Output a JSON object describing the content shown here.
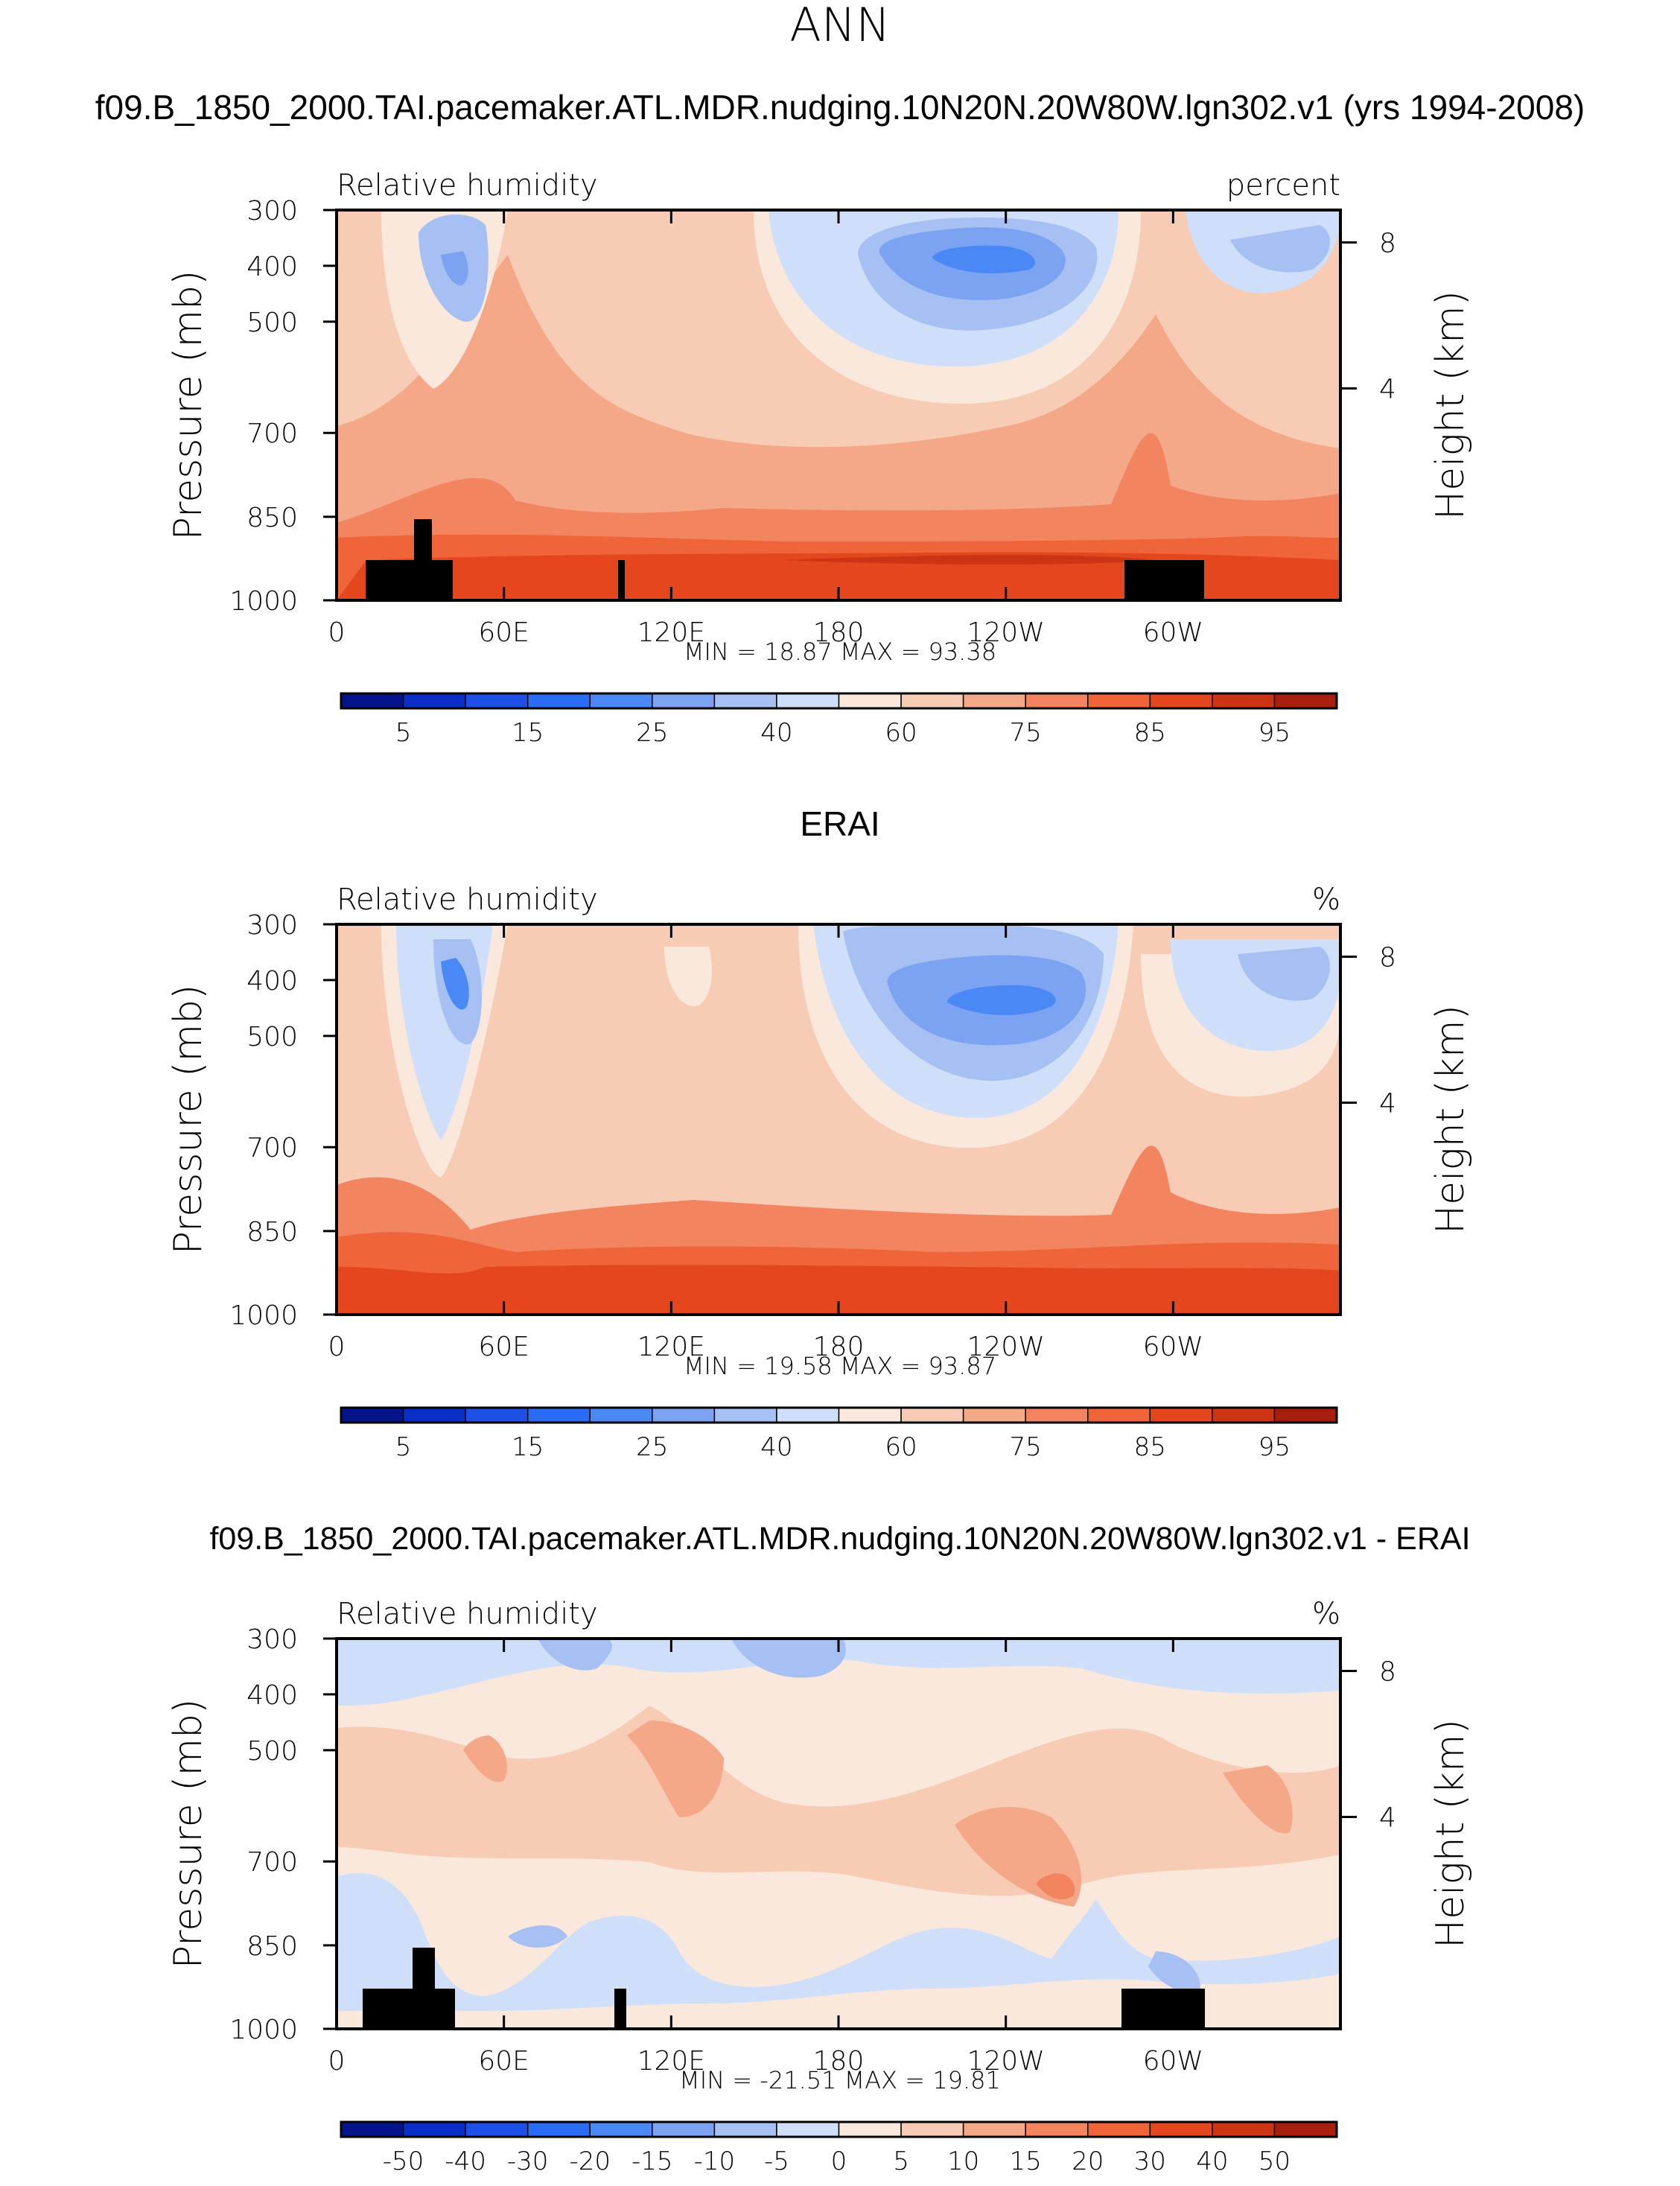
{
  "page_title": "ANN",
  "chart_data": [
    {
      "type": "heatmap",
      "title": "f09.B_1850_2000.TAI.pacemaker.ATL.MDR.nudging.10N20N.20W80W.lgn302.v1 (yrs 1994-2008)",
      "left_label": "Relative humidity",
      "right_label": "percent",
      "ylabel": "Pressure (mb)",
      "y2label": "Height (km)",
      "x_ticks": [
        "0",
        "60E",
        "120E",
        "180",
        "120W",
        "60W"
      ],
      "y_ticks": [
        "300",
        "400",
        "500",
        "700",
        "850",
        "1000"
      ],
      "y2_ticks": [
        "8",
        "4"
      ],
      "xlim": [
        0,
        360
      ],
      "ylim": [
        1000,
        300
      ],
      "stats": "MIN =   18.87   MAX =   93.38",
      "colorbar": {
        "levels": [
          5,
          10,
          15,
          20,
          25,
          30,
          40,
          50,
          60,
          65,
          75,
          80,
          85,
          90,
          95
        ],
        "labels": [
          "5",
          "15",
          "25",
          "40",
          "60",
          "75",
          "85",
          "95"
        ],
        "colors": [
          "#06148c",
          "#0a2ec8",
          "#1e50e6",
          "#2a6cf5",
          "#4a88f5",
          "#7ca2f2",
          "#a7c0f4",
          "#cfdffa",
          "#fbe8dc",
          "#f8ccb4",
          "#f5a888",
          "#f38460",
          "#ef6438",
          "#e4461e",
          "#cc3414",
          "#a81e0c"
        ]
      }
    },
    {
      "type": "heatmap",
      "title": "ERAI",
      "left_label": "Relative humidity",
      "right_label": "%",
      "ylabel": "Pressure (mb)",
      "y2label": "Height (km)",
      "x_ticks": [
        "0",
        "60E",
        "120E",
        "180",
        "120W",
        "60W"
      ],
      "y_ticks": [
        "300",
        "400",
        "500",
        "700",
        "850",
        "1000"
      ],
      "y2_ticks": [
        "8",
        "4"
      ],
      "xlim": [
        0,
        360
      ],
      "ylim": [
        1000,
        300
      ],
      "stats": "MIN =   19.58   MAX =   93.87",
      "colorbar": {
        "levels": [
          5,
          10,
          15,
          20,
          25,
          30,
          40,
          50,
          60,
          65,
          75,
          80,
          85,
          90,
          95
        ],
        "labels": [
          "5",
          "15",
          "25",
          "40",
          "60",
          "75",
          "85",
          "95"
        ],
        "colors": [
          "#06148c",
          "#0a2ec8",
          "#1e50e6",
          "#2a6cf5",
          "#4a88f5",
          "#7ca2f2",
          "#a7c0f4",
          "#cfdffa",
          "#fbe8dc",
          "#f8ccb4",
          "#f5a888",
          "#f38460",
          "#ef6438",
          "#e4461e",
          "#cc3414",
          "#a81e0c"
        ]
      }
    },
    {
      "type": "heatmap",
      "title": "f09.B_1850_2000.TAI.pacemaker.ATL.MDR.nudging.10N20N.20W80W.lgn302.v1 - ERAI",
      "left_label": "Relative humidity",
      "right_label": "%",
      "ylabel": "Pressure (mb)",
      "y2label": "Height (km)",
      "x_ticks": [
        "0",
        "60E",
        "120E",
        "180",
        "120W",
        "60W"
      ],
      "y_ticks": [
        "300",
        "400",
        "500",
        "700",
        "850",
        "1000"
      ],
      "y2_ticks": [
        "8",
        "4"
      ],
      "xlim": [
        0,
        360
      ],
      "ylim": [
        1000,
        300
      ],
      "stats": "MIN =  -21.51   MAX =   19.81",
      "colorbar": {
        "levels": [
          -50,
          -40,
          -30,
          -20,
          -15,
          -10,
          -5,
          0,
          5,
          10,
          15,
          20,
          30,
          40,
          50
        ],
        "labels": [
          "-50",
          "-40",
          "-30",
          "-20",
          "-15",
          "-10",
          "-5",
          "0",
          "5",
          "10",
          "15",
          "20",
          "30",
          "40",
          "50"
        ],
        "colors": [
          "#06148c",
          "#0a2ec8",
          "#1e50e6",
          "#2a6cf5",
          "#4a88f5",
          "#7ca2f2",
          "#a7c0f4",
          "#cfdffa",
          "#fbe8dc",
          "#f8ccb4",
          "#f5a888",
          "#f38460",
          "#ef6438",
          "#e4461e",
          "#cc3414",
          "#a81e0c"
        ]
      }
    }
  ]
}
